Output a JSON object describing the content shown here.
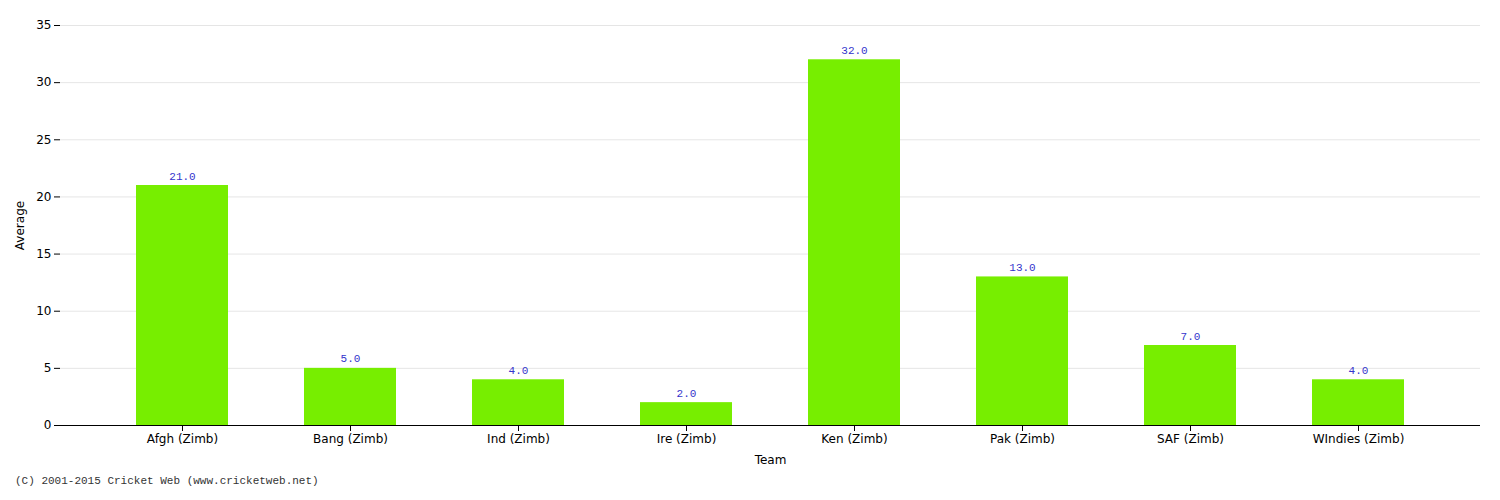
{
  "chart_data": {
    "type": "bar",
    "categories": [
      "Afgh (Zimb)",
      "Bang (Zimb)",
      "Ind (Zimb)",
      "Ire (Zimb)",
      "Ken (Zimb)",
      "Pak (Zimb)",
      "SAF (Zimb)",
      "WIndies (Zimb)"
    ],
    "values": [
      21.0,
      5.0,
      4.0,
      2.0,
      32.0,
      13.0,
      7.0,
      4.0
    ],
    "value_labels": [
      "21.0",
      "5.0",
      "4.0",
      "2.0",
      "32.0",
      "13.0",
      "7.0",
      "4.0"
    ],
    "data_labels": true,
    "color": "#77ee00",
    "xlabel": "Team",
    "ylabel": "Average",
    "ylim": [
      0,
      35
    ],
    "yticks": [
      0,
      5,
      10,
      15,
      20,
      25,
      30,
      35
    ],
    "grid": true,
    "annotations": [
      "(C) 2001-2015 Cricket Web (www.cricketweb.net)"
    ]
  }
}
